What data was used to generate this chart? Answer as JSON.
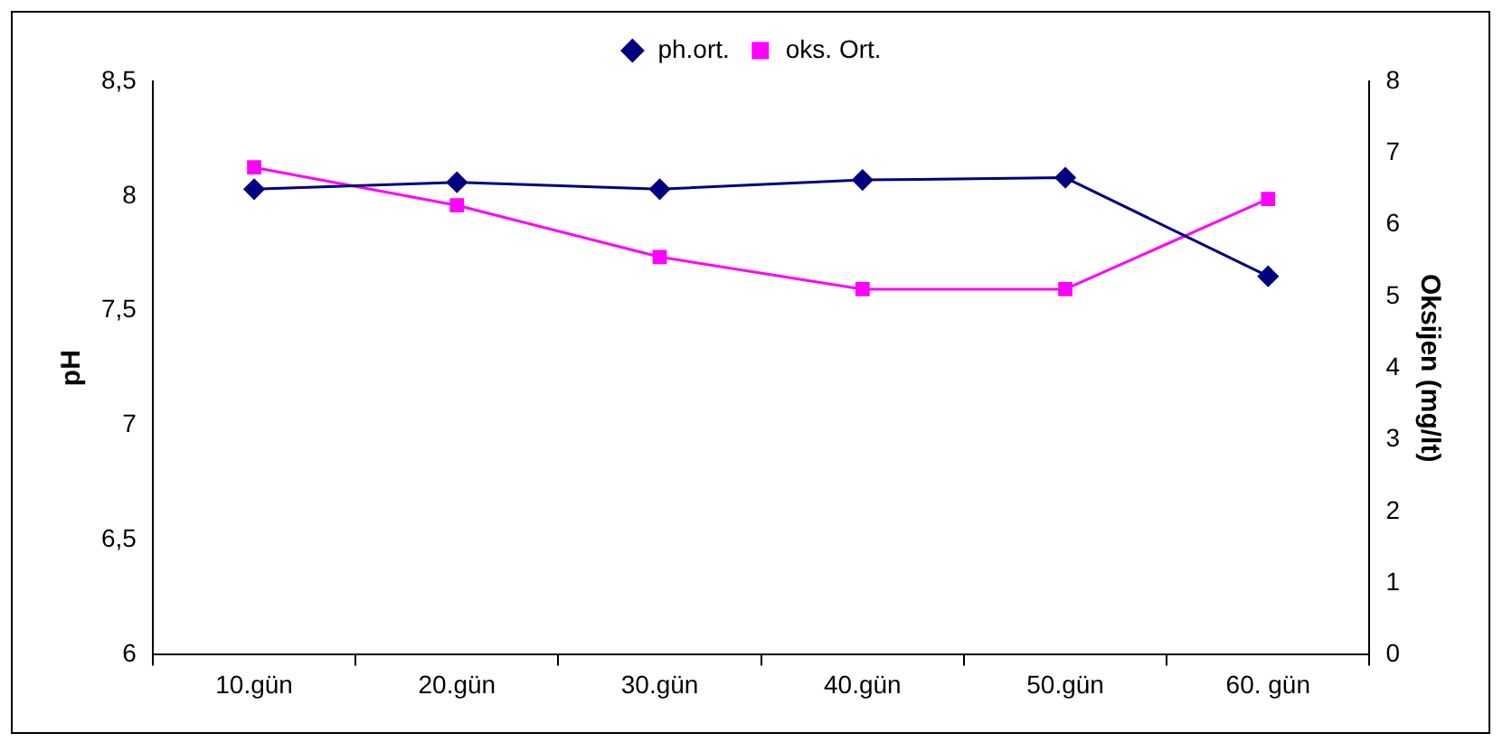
{
  "chart_data": {
    "type": "line",
    "categories": [
      "10.gün",
      "20.gün",
      "30.gün",
      "40.gün",
      "50.gün",
      "60. gün"
    ],
    "ylabel": "pH",
    "y2label": "Oksijen (mg/lt)",
    "ylim": [
      6,
      8.5
    ],
    "yticks": [
      6,
      {
        "value": 6.5,
        "label": "6,5"
      },
      7,
      {
        "value": 7.5,
        "label": "7,5"
      },
      8,
      {
        "value": 8.5,
        "label": "8,5"
      }
    ],
    "y2lim": [
      0,
      8
    ],
    "y2ticks": [
      0,
      1,
      2,
      3,
      4,
      5,
      6,
      7,
      8
    ],
    "grid": false,
    "legend": "top",
    "series": [
      {
        "name": "ph.ort.",
        "color": "#000080",
        "marker": "diamond",
        "values": [
          8.03,
          8.06,
          8.03,
          8.07,
          8.08,
          7.65
        ]
      },
      {
        "name": "oks. Ort.",
        "color": "#ff00ff",
        "marker": "square",
        "axis": "y2",
        "values": [
          6.8,
          6.27,
          5.55,
          5.1,
          5.1,
          6.36
        ]
      }
    ]
  }
}
